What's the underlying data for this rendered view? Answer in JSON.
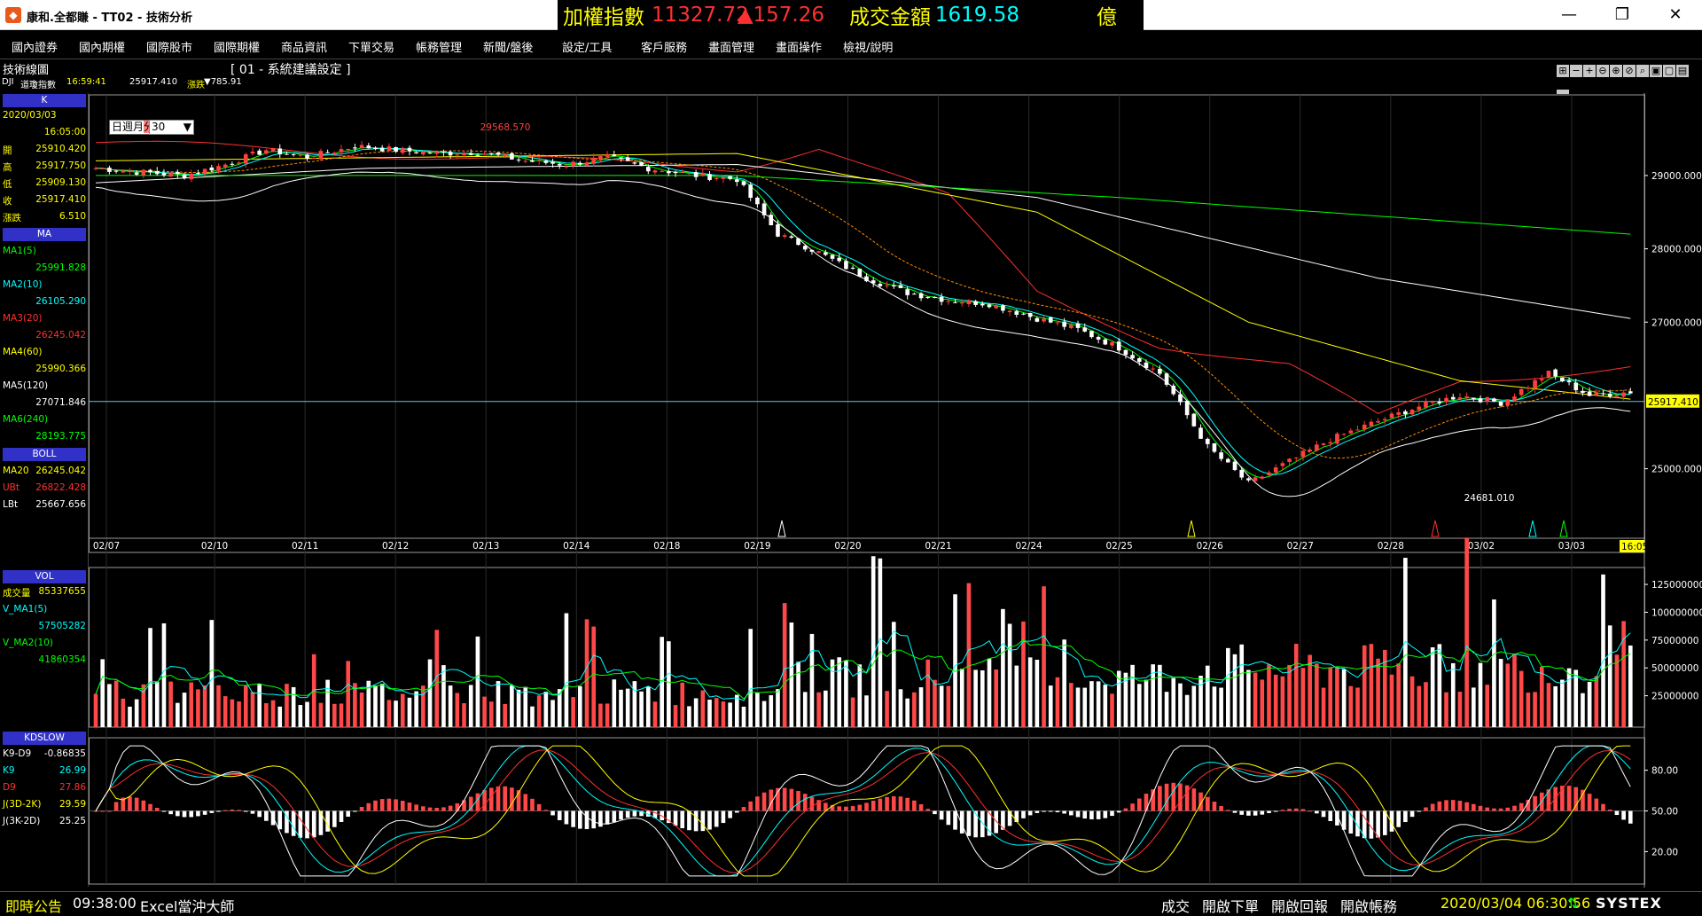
{
  "window": {
    "title": "康和.全都賺 - TT02 - 技術分析",
    "app_icon": "gem-icon"
  },
  "ticker": {
    "label": "加權指數",
    "value": "11327.72",
    "change": "▲157.26",
    "amount_label": "成交金額",
    "amount": "1619.58",
    "unit": "億"
  },
  "menu": [
    "國內證券",
    "國內期權",
    "國際股市",
    "國際期權",
    "商品資訊",
    "下單交易",
    "帳務管理",
    "新聞/盤後",
    "設定/工具",
    "客戶服務",
    "畫面管理",
    "畫面操作",
    "檢視/說明"
  ],
  "toolbar": {
    "panel_label": "技術線圖",
    "period_tabs": [
      "日",
      "週",
      "月",
      "分"
    ],
    "active_period": "分",
    "minutes": "30",
    "setting": "[ 01 - 系統建議設定 ]"
  },
  "info": {
    "symbol": "DJI",
    "name": "道瓊指數",
    "time": "16:59:41",
    "price": "25917.410",
    "change_label": "漲跌",
    "change": "▼785.91"
  },
  "left_panel": {
    "k_header": "K",
    "date": "2020/03/03",
    "time": "16:05:00",
    "ohlc": [
      {
        "label": "開",
        "value": "25910.420"
      },
      {
        "label": "高",
        "value": "25917.750"
      },
      {
        "label": "低",
        "value": "25909.130"
      },
      {
        "label": "收",
        "value": "25917.410"
      },
      {
        "label": "漲跌",
        "value": "6.510"
      }
    ],
    "ma_header": "MA",
    "ma": [
      {
        "label": "MA1(5)",
        "value": "25991.828",
        "color": "#00ff00"
      },
      {
        "label": "MA2(10)",
        "value": "26105.290",
        "color": "#00ffff"
      },
      {
        "label": "MA3(20)",
        "value": "26245.042",
        "color": "#ff3030"
      },
      {
        "label": "MA4(60)",
        "value": "25990.366",
        "color": "#ffff00"
      },
      {
        "label": "MA5(120)",
        "value": "27071.846",
        "color": "#ffffff"
      },
      {
        "label": "MA6(240)",
        "value": "28193.775",
        "color": "#00ff00"
      }
    ],
    "boll_header": "BOLL",
    "boll": [
      {
        "label": "MA20",
        "value": "26245.042",
        "color": "#ffff00"
      },
      {
        "label": "UBt",
        "value": "26822.428",
        "color": "#ff3030"
      },
      {
        "label": "LBt",
        "value": "25667.656",
        "color": "#ffffff"
      }
    ],
    "vol_header": "VOL",
    "vol": [
      {
        "label": "成交量",
        "value": "85337655",
        "color": "#ffff00"
      },
      {
        "label": "V_MA1(5)",
        "value": "57505282",
        "color": "#00ffff"
      },
      {
        "label": "V_MA2(10)",
        "value": "41860354",
        "color": "#00ff00"
      }
    ],
    "kd_header": "KDSLOW",
    "kd": [
      {
        "label": "K9-D9",
        "value": "-0.86835",
        "color": "#ffffff"
      },
      {
        "label": "K9",
        "value": "26.99",
        "color": "#00ffff"
      },
      {
        "label": "D9",
        "value": "27.86",
        "color": "#ff3030"
      },
      {
        "label": "J(3D-2K)",
        "value": "29.59",
        "color": "#ffff00"
      },
      {
        "label": "J(3K-2D)",
        "value": "25.25",
        "color": "#ffffff"
      }
    ]
  },
  "chart_data": {
    "type": "candlestick",
    "x_dates": [
      "02/07",
      "02/10",
      "02/11",
      "02/12",
      "02/13",
      "02/14",
      "02/18",
      "02/19",
      "02/20",
      "02/21",
      "02/24",
      "02/25",
      "02/26",
      "02/27",
      "02/28",
      "03/02",
      "03/03"
    ],
    "current_time_label": "16:05",
    "price_ticks": [
      29000,
      28000,
      27000,
      25000
    ],
    "price_tick_labels": [
      "29000.000",
      "28000.000",
      "27000.000",
      "25000.000"
    ],
    "price_range": [
      24100,
      30100
    ],
    "current_price": 25917.41,
    "current_price_label": "25917.410",
    "annotations": [
      {
        "text": "29568.570",
        "value": 29568.57
      },
      {
        "text": "24681.010",
        "value": 24681.01
      }
    ],
    "volume_ticks": [
      125000000,
      100000000,
      75000000,
      50000000,
      25000000
    ],
    "volume_tick_labels": [
      "125000000",
      "100000000",
      "75000000",
      "50000000",
      "25000000"
    ],
    "kd_ticks": [
      80,
      50,
      20
    ],
    "kd_tick_labels": [
      "80.00",
      "50.00",
      "20.00"
    ],
    "close_path": [
      [
        0,
        29100
      ],
      [
        6,
        29050
      ],
      [
        13,
        29000
      ],
      [
        19,
        29150
      ],
      [
        25,
        29350
      ],
      [
        31,
        29250
      ],
      [
        38,
        29400
      ],
      [
        44,
        29350
      ],
      [
        50,
        29300
      ],
      [
        56,
        29320
      ],
      [
        63,
        29200
      ],
      [
        69,
        29150
      ],
      [
        75,
        29250
      ],
      [
        81,
        29100
      ],
      [
        88,
        29000
      ],
      [
        94,
        28950
      ],
      [
        100,
        28200
      ],
      [
        106,
        27950
      ],
      [
        113,
        27600
      ],
      [
        119,
        27400
      ],
      [
        125,
        27300
      ],
      [
        131,
        27250
      ],
      [
        138,
        27050
      ],
      [
        144,
        26900
      ],
      [
        150,
        26650
      ],
      [
        156,
        26300
      ],
      [
        163,
        25300
      ],
      [
        169,
        24800
      ],
      [
        175,
        25100
      ],
      [
        181,
        25400
      ],
      [
        188,
        25650
      ],
      [
        194,
        25850
      ],
      [
        200,
        26000
      ],
      [
        206,
        25900
      ],
      [
        213,
        26300
      ],
      [
        219,
        26000
      ],
      [
        225,
        26050
      ]
    ],
    "ma_series": [
      {
        "name": "MA3(20)",
        "color": "#ff3030",
        "points": [
          [
            0,
            29450
          ],
          [
            40,
            29300
          ],
          [
            94,
            29100
          ],
          [
            106,
            29400
          ],
          [
            125,
            28700
          ],
          [
            138,
            27400
          ],
          [
            156,
            26700
          ],
          [
            175,
            26400
          ],
          [
            188,
            25700
          ],
          [
            200,
            26200
          ],
          [
            225,
            26400
          ]
        ]
      },
      {
        "name": "MA5(120)",
        "color": "#ffffff",
        "points": [
          [
            0,
            28900
          ],
          [
            40,
            29100
          ],
          [
            94,
            29150
          ],
          [
            138,
            28700
          ],
          [
            188,
            27600
          ],
          [
            225,
            27050
          ]
        ]
      },
      {
        "name": "MA6(240)",
        "color": "#00ff00",
        "points": [
          [
            0,
            29000
          ],
          [
            94,
            29000
          ],
          [
            150,
            28700
          ],
          [
            225,
            28200
          ]
        ]
      },
      {
        "name": "MA4(60)",
        "color": "#ffff00",
        "points": [
          [
            0,
            29200
          ],
          [
            94,
            29300
          ],
          [
            138,
            28500
          ],
          [
            169,
            27000
          ],
          [
            200,
            26200
          ],
          [
            225,
            25950
          ]
        ]
      }
    ]
  },
  "status": {
    "left": "即時公告",
    "time": "09:38:00",
    "news": "Excel當沖大師",
    "right": [
      "成交",
      "開啟下單",
      "開啟回報",
      "開啟帳務"
    ],
    "datetime": "2020/03/04 06:30:56",
    "brand": "SYSTEX"
  }
}
